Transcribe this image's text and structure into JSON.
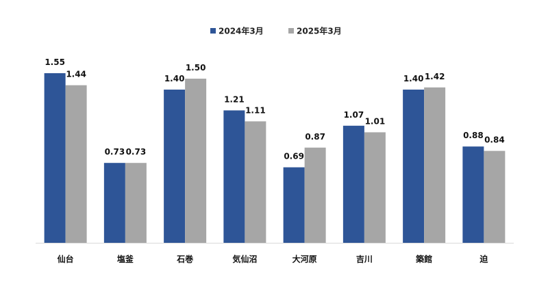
{
  "chart_data": {
    "type": "bar",
    "categories": [
      "仙台",
      "塩釜",
      "石巻",
      "気仙沼",
      "大河原",
      "吉川",
      "築館",
      "迫"
    ],
    "series": [
      {
        "name": "2024年3月",
        "color": "#2E5597",
        "values": [
          1.55,
          0.73,
          1.4,
          1.21,
          0.69,
          1.07,
          1.4,
          0.88
        ]
      },
      {
        "name": "2025年3月",
        "color": "#A6A6A6",
        "values": [
          1.44,
          0.73,
          1.5,
          1.11,
          0.87,
          1.01,
          1.42,
          0.84
        ]
      }
    ],
    "value_labels": [
      [
        "1.55",
        "0.73",
        "1.40",
        "1.21",
        "0.69",
        "1.07",
        "1.40",
        "0.88"
      ],
      [
        "1.44",
        "0.73",
        "1.50",
        "1.11",
        "0.87",
        "1.01",
        "1.42",
        "0.84"
      ]
    ],
    "ylim": [
      0,
      1.55
    ],
    "grid": false,
    "legend_position": "top-center",
    "title": "",
    "xlabel": "",
    "ylabel": ""
  }
}
